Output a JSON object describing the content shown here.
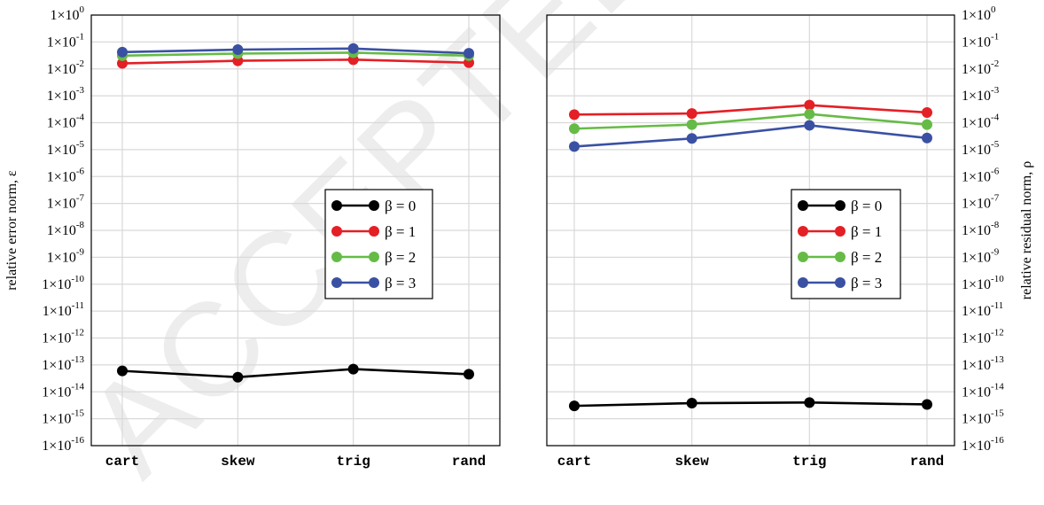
{
  "watermark": "ACCEPTED",
  "chart_data": [
    {
      "type": "line",
      "panel": "left",
      "yscale": "log",
      "ylim": [
        1e-16,
        1
      ],
      "ylabel": "relative error norm, ε",
      "categories": [
        "cart",
        "skew",
        "trig",
        "rand"
      ],
      "grid": true,
      "legend_position": "right-middle",
      "series": [
        {
          "name": "β = 0",
          "color": "#000000",
          "values": [
            6e-14,
            3.5e-14,
            7e-14,
            4.5e-14
          ]
        },
        {
          "name": "β = 1",
          "color": "#e41f26",
          "values": [
            0.016,
            0.02,
            0.022,
            0.017
          ]
        },
        {
          "name": "β = 2",
          "color": "#66bb46",
          "values": [
            0.031,
            0.037,
            0.04,
            0.031
          ]
        },
        {
          "name": "β = 3",
          "color": "#3a51a3",
          "values": [
            0.042,
            0.052,
            0.057,
            0.038
          ]
        }
      ]
    },
    {
      "type": "line",
      "panel": "right",
      "yscale": "log",
      "ylim": [
        1e-16,
        1
      ],
      "ylabel": "relative residual norm, ρ",
      "categories": [
        "cart",
        "skew",
        "trig",
        "rand"
      ],
      "grid": true,
      "legend_position": "right-middle",
      "series": [
        {
          "name": "β = 0",
          "color": "#000000",
          "values": [
            3e-15,
            3.8e-15,
            4e-15,
            3.4e-15
          ]
        },
        {
          "name": "β = 1",
          "color": "#e41f26",
          "values": [
            0.0002,
            0.00022,
            0.00045,
            0.00024
          ]
        },
        {
          "name": "β = 2",
          "color": "#66bb46",
          "values": [
            6e-05,
            8.5e-05,
            0.00021,
            8.5e-05
          ]
        },
        {
          "name": "β = 3",
          "color": "#3a51a3",
          "values": [
            1.3e-05,
            2.6e-05,
            8e-05,
            2.7e-05
          ]
        }
      ]
    }
  ],
  "ytick_labels": [
    {
      "base": "1×10",
      "exp": "0"
    },
    {
      "base": "1×10",
      "exp": "-1"
    },
    {
      "base": "1×10",
      "exp": "-2"
    },
    {
      "base": "1×10",
      "exp": "-3"
    },
    {
      "base": "1×10",
      "exp": "-4"
    },
    {
      "base": "1×10",
      "exp": "-5"
    },
    {
      "base": "1×10",
      "exp": "-6"
    },
    {
      "base": "1×10",
      "exp": "-7"
    },
    {
      "base": "1×10",
      "exp": "-8"
    },
    {
      "base": "1×10",
      "exp": "-9"
    },
    {
      "base": "1×10",
      "exp": "-10"
    },
    {
      "base": "1×10",
      "exp": "-11"
    },
    {
      "base": "1×10",
      "exp": "-12"
    },
    {
      "base": "1×10",
      "exp": "-13"
    },
    {
      "base": "1×10",
      "exp": "-14"
    },
    {
      "base": "1×10",
      "exp": "-15"
    },
    {
      "base": "1×10",
      "exp": "-16"
    }
  ]
}
